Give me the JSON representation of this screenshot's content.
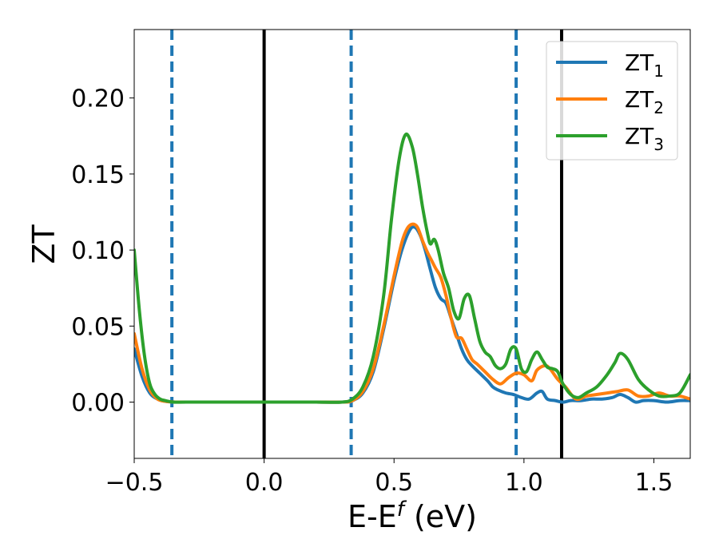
{
  "chart_data": {
    "type": "line",
    "xlabel": "E-E",
    "xlabel_sub": "f",
    "xlabel_unit": " (eV)",
    "ylabel": "ZT",
    "xlim": [
      -0.5,
      1.64
    ],
    "ylim": [
      -0.037,
      0.245
    ],
    "xticks": [
      -0.5,
      0.0,
      0.5,
      1.0,
      1.5
    ],
    "xtick_labels": [
      "−0.5",
      "0.0",
      "0.5",
      "1.0",
      "1.5"
    ],
    "yticks": [
      0.0,
      0.05,
      0.1,
      0.15,
      0.2
    ],
    "ytick_labels": [
      "0.00",
      "0.05",
      "0.10",
      "0.15",
      "0.20"
    ],
    "grid": false,
    "legend_position": "top-right",
    "vlines_solid": {
      "color": "#000000",
      "x": [
        0.0,
        1.145
      ]
    },
    "vlines_dashed": {
      "color": "#1f77b4",
      "x": [
        -0.355,
        0.335,
        0.97
      ]
    },
    "series": [
      {
        "name": "ZT",
        "subscript": "1",
        "color": "#1f77b4",
        "x": [
          -0.5,
          -0.47,
          -0.44,
          -0.41,
          -0.38,
          -0.35,
          -0.3,
          -0.2,
          -0.1,
          0.0,
          0.1,
          0.2,
          0.3,
          0.34,
          0.38,
          0.42,
          0.46,
          0.5,
          0.53,
          0.56,
          0.58,
          0.6,
          0.62,
          0.64,
          0.66,
          0.68,
          0.7,
          0.72,
          0.74,
          0.76,
          0.78,
          0.8,
          0.83,
          0.86,
          0.88,
          0.9,
          0.93,
          0.96,
          0.99,
          1.02,
          1.05,
          1.07,
          1.09,
          1.12,
          1.15,
          1.18,
          1.22,
          1.26,
          1.3,
          1.34,
          1.37,
          1.4,
          1.43,
          1.46,
          1.5,
          1.55,
          1.6,
          1.64
        ],
        "y": [
          0.035,
          0.017,
          0.006,
          0.002,
          0.0005,
          0.0001,
          0.0,
          0.0,
          0.0,
          0.0,
          0.0,
          0.0,
          0.0,
          0.001,
          0.006,
          0.02,
          0.048,
          0.08,
          0.1,
          0.113,
          0.115,
          0.11,
          0.1,
          0.087,
          0.075,
          0.068,
          0.065,
          0.055,
          0.045,
          0.035,
          0.028,
          0.024,
          0.019,
          0.014,
          0.01,
          0.008,
          0.006,
          0.005,
          0.003,
          0.002,
          0.006,
          0.007,
          0.002,
          0.001,
          0.0,
          0.001,
          0.001,
          0.002,
          0.002,
          0.003,
          0.005,
          0.003,
          0.0,
          0.001,
          0.001,
          0.0,
          0.001,
          0.001
        ]
      },
      {
        "name": "ZT",
        "subscript": "2",
        "color": "#ff7f0e",
        "x": [
          -0.5,
          -0.47,
          -0.44,
          -0.41,
          -0.38,
          -0.35,
          -0.3,
          -0.2,
          -0.1,
          0.0,
          0.1,
          0.2,
          0.3,
          0.34,
          0.38,
          0.42,
          0.46,
          0.5,
          0.53,
          0.55,
          0.57,
          0.59,
          0.61,
          0.63,
          0.645,
          0.66,
          0.68,
          0.7,
          0.72,
          0.74,
          0.76,
          0.78,
          0.8,
          0.82,
          0.85,
          0.88,
          0.91,
          0.94,
          0.97,
          1.0,
          1.03,
          1.05,
          1.08,
          1.1,
          1.13,
          1.16,
          1.2,
          1.24,
          1.28,
          1.32,
          1.36,
          1.4,
          1.44,
          1.48,
          1.52,
          1.56,
          1.6,
          1.64
        ],
        "y": [
          0.045,
          0.022,
          0.008,
          0.002,
          0.0005,
          0.0001,
          0.0,
          0.0,
          0.0,
          0.0,
          0.0,
          0.0,
          0.0,
          0.001,
          0.007,
          0.022,
          0.05,
          0.083,
          0.105,
          0.114,
          0.117,
          0.115,
          0.106,
          0.098,
          0.093,
          0.088,
          0.082,
          0.07,
          0.055,
          0.043,
          0.042,
          0.035,
          0.028,
          0.025,
          0.02,
          0.015,
          0.012,
          0.016,
          0.019,
          0.018,
          0.014,
          0.021,
          0.024,
          0.022,
          0.015,
          0.01,
          0.002,
          0.004,
          0.005,
          0.006,
          0.007,
          0.008,
          0.004,
          0.004,
          0.006,
          0.004,
          0.004,
          0.002
        ]
      },
      {
        "name": "ZT",
        "subscript": "3",
        "color": "#2ca02c",
        "x": [
          -0.5,
          -0.48,
          -0.46,
          -0.44,
          -0.42,
          -0.4,
          -0.38,
          -0.35,
          -0.3,
          -0.2,
          -0.1,
          0.0,
          0.1,
          0.2,
          0.3,
          0.34,
          0.38,
          0.42,
          0.46,
          0.49,
          0.52,
          0.545,
          0.57,
          0.59,
          0.61,
          0.63,
          0.64,
          0.655,
          0.67,
          0.69,
          0.71,
          0.73,
          0.75,
          0.77,
          0.79,
          0.81,
          0.83,
          0.85,
          0.87,
          0.89,
          0.91,
          0.93,
          0.95,
          0.97,
          0.99,
          1.01,
          1.03,
          1.05,
          1.07,
          1.09,
          1.11,
          1.13,
          1.15,
          1.18,
          1.21,
          1.24,
          1.28,
          1.32,
          1.35,
          1.37,
          1.4,
          1.44,
          1.48,
          1.52,
          1.56,
          1.6,
          1.64
        ],
        "y": [
          0.1,
          0.06,
          0.03,
          0.012,
          0.005,
          0.002,
          0.001,
          0.0,
          0.0,
          0.0,
          0.0,
          0.0,
          0.0,
          0.0,
          0.0,
          0.002,
          0.01,
          0.03,
          0.07,
          0.12,
          0.16,
          0.176,
          0.168,
          0.15,
          0.128,
          0.11,
          0.104,
          0.107,
          0.1,
          0.085,
          0.075,
          0.06,
          0.055,
          0.068,
          0.07,
          0.055,
          0.04,
          0.033,
          0.03,
          0.024,
          0.022,
          0.025,
          0.035,
          0.035,
          0.022,
          0.02,
          0.028,
          0.033,
          0.028,
          0.023,
          0.022,
          0.02,
          0.012,
          0.005,
          0.003,
          0.006,
          0.01,
          0.018,
          0.026,
          0.032,
          0.028,
          0.015,
          0.008,
          0.004,
          0.004,
          0.006,
          0.018
        ]
      }
    ]
  }
}
